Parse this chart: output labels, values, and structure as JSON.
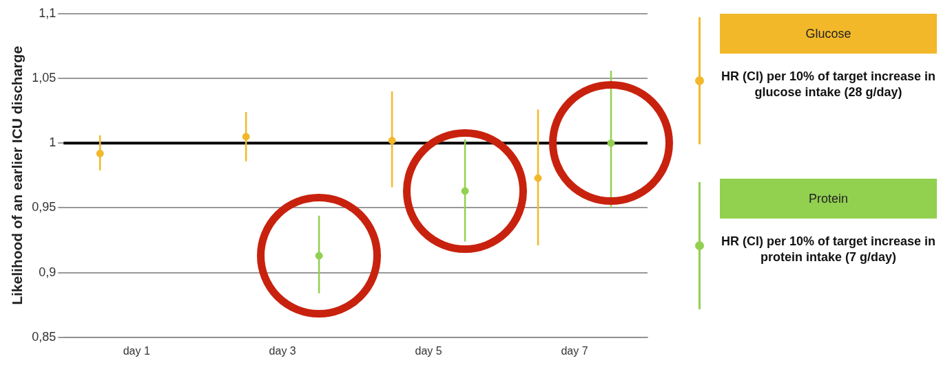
{
  "chart_data": {
    "type": "scatter",
    "ylabel": "Likelihood of an earlier ICU discharge",
    "categories": [
      "day 1",
      "day 3",
      "day 5",
      "day 7"
    ],
    "series": [
      {
        "name": "Glucose",
        "color": "#f2b82a",
        "x": [
          "day 1",
          "day 3",
          "day 5",
          "day 7"
        ],
        "values": [
          0.992,
          1.005,
          1.002,
          0.973
        ],
        "errors": [
          [
            0.979,
            1.006
          ],
          [
            0.986,
            1.024
          ],
          [
            0.966,
            1.04
          ],
          [
            0.921,
            1.026
          ]
        ]
      },
      {
        "name": "Protein",
        "color": "#92d050",
        "x": [
          "day 3",
          "day 5",
          "day 7"
        ],
        "values": [
          0.913,
          0.963,
          1.0
        ],
        "errors": [
          [
            0.884,
            0.944
          ],
          [
            0.924,
            1.003
          ],
          [
            0.95,
            1.056
          ]
        ]
      }
    ],
    "ylim": [
      0.85,
      1.1
    ],
    "yticks": [
      {
        "value": 0.85,
        "label": "0,85"
      },
      {
        "value": 0.9,
        "label": "0,9"
      },
      {
        "value": 0.95,
        "label": "0,95"
      },
      {
        "value": 1,
        "label": "1"
      },
      {
        "value": 1.05,
        "label": "1,05"
      },
      {
        "value": 1.1,
        "label": "1,1"
      }
    ],
    "grid": "y",
    "marker": "circle",
    "legend": "right",
    "ref_lines": [
      {
        "axis": "y",
        "value": 1,
        "color": "#000000"
      }
    ],
    "annotations": [
      "HR (CI) per 10% of target increase in glucose intake (28 g/day)",
      "HR (CI) per 10% of target increase in protein intake (7 g/day)"
    ]
  }
}
